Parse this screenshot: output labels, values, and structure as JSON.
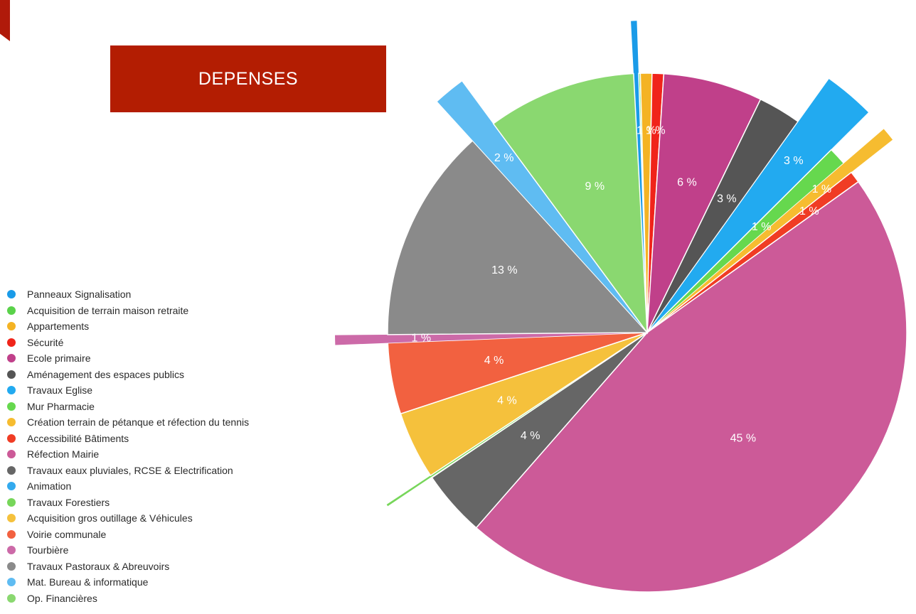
{
  "title": "DEPENSES",
  "colors": {
    "title_bg": "#b31d02",
    "corner_tab": "#b01a0a"
  },
  "chart_data": {
    "type": "pie",
    "title": "DEPENSES",
    "legend_position": "left",
    "unit": "%",
    "slices": [
      {
        "name": "Panneaux Signalisation",
        "value": 0.3,
        "label": "",
        "color": "#1a9be8",
        "exploded": true
      },
      {
        "name": "Acquisition de terrain maison retraite",
        "value": 0.1,
        "label": "",
        "color": "#5ad24a",
        "exploded": false
      },
      {
        "name": "Appartements",
        "value": 0.7,
        "label": "1 %",
        "color": "#f4b324",
        "exploded": false
      },
      {
        "name": "Sécurité",
        "value": 0.7,
        "label": "1 %",
        "color": "#f0241a",
        "exploded": false
      },
      {
        "name": "Ecole primaire",
        "value": 6,
        "label": "6 %",
        "color": "#c0408a",
        "exploded": false
      },
      {
        "name": "Aménagement des espaces publics",
        "value": 2.6,
        "label": "3 %",
        "color": "#555555",
        "exploded": false
      },
      {
        "name": "Travaux Eglise",
        "value": 2.6,
        "label": "3 %",
        "color": "#22aaf0",
        "exploded": true
      },
      {
        "name": "Mur Pharmacie",
        "value": 1.1,
        "label": "1 %",
        "color": "#66d84e",
        "exploded": false
      },
      {
        "name": "Création terrain de pétanque et réfection du tennis",
        "value": 0.7,
        "label": "1 %",
        "color": "#f6bc30",
        "exploded": true
      },
      {
        "name": "Accessibilité Bâtiments",
        "value": 0.7,
        "label": "1 %",
        "color": "#f03c24",
        "exploded": false
      },
      {
        "name": "Réfection Mairie",
        "value": 45,
        "label": "45 %",
        "color": "#cc5a98",
        "exploded": false
      },
      {
        "name": "Travaux eaux pluviales, RCSE & Electrification",
        "value": 4,
        "label": "4 %",
        "color": "#666666",
        "exploded": false
      },
      {
        "name": "Animation",
        "value": 0.05,
        "label": "",
        "color": "#33aaee",
        "exploded": false
      },
      {
        "name": "Travaux Forestiers",
        "value": 0.1,
        "label": "",
        "color": "#77d65a",
        "exploded": true
      },
      {
        "name": "Acquisition gros outillage & Véhicules",
        "value": 4.1,
        "label": "4 %",
        "color": "#f5c13c",
        "exploded": false
      },
      {
        "name": "Voirie communale",
        "value": 4.3,
        "label": "4 %",
        "color": "#f26140",
        "exploded": false
      },
      {
        "name": "Tourbière",
        "value": 0.5,
        "label": "1 %",
        "color": "#cc6aa8",
        "exploded": true
      },
      {
        "name": "Travaux Pastoraux & Abreuvoirs",
        "value": 13,
        "label": "13 %",
        "color": "#8a8a8a",
        "exploded": false
      },
      {
        "name": "Mat. Bureau & informatique",
        "value": 1.6,
        "label": "2 %",
        "color": "#5fbcf2",
        "exploded": true
      },
      {
        "name": "Op. Financières",
        "value": 9,
        "label": "9 %",
        "color": "#8ad870",
        "exploded": false
      }
    ]
  }
}
